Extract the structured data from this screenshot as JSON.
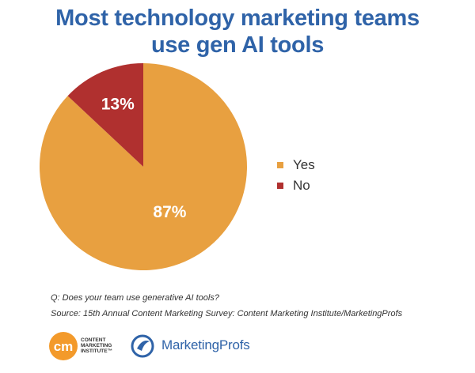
{
  "chart_data": {
    "type": "pie",
    "title_lines": [
      "Most technology marketing teams",
      "use gen AI tools"
    ],
    "slices": [
      {
        "label": "Yes",
        "value": 87,
        "display": "87%",
        "color": "#e8a040"
      },
      {
        "label": "No",
        "value": 13,
        "display": "13%",
        "color": "#b0302f"
      }
    ],
    "legend_placement": "right"
  },
  "notes": {
    "question": "Q: Does your team use generative AI tools?",
    "source": "Source: 15th Annual Content Marketing Survey: Content Marketing Institute/MarketingProfs"
  },
  "logos": {
    "cmi": {
      "mark": "cm",
      "text_lines": [
        "CONTENT",
        "MARKETING",
        "INSTITUTE™"
      ]
    },
    "mp": {
      "text": "MarketingProfs"
    }
  },
  "colors": {
    "title": "#2f63a8",
    "yes": "#e8a040",
    "no": "#b0302f",
    "cmi_orange": "#f39a2b"
  }
}
